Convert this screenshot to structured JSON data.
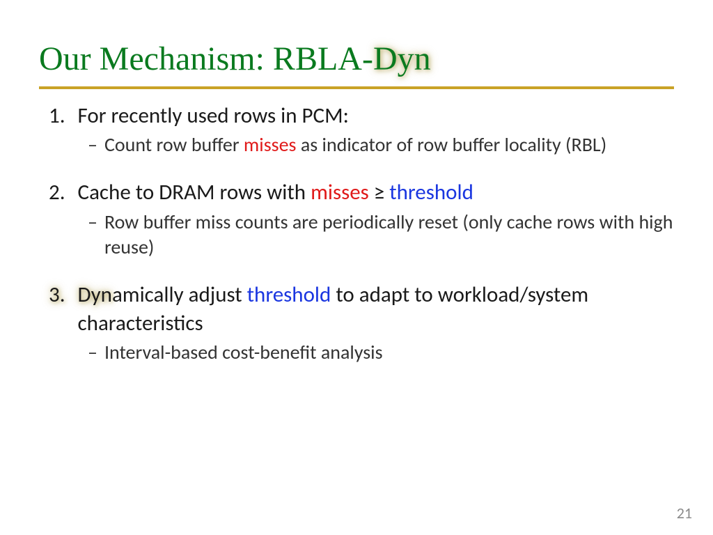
{
  "colors": {
    "title_green": "#0a7a1f",
    "rule": "#c9a227",
    "misses_red": "#e01a1a",
    "threshold_blue": "#1a36e0",
    "page_num_gray": "#8a8a8a",
    "body_text": "#1a1a1a",
    "sub_text": "#333333"
  },
  "typography": {
    "title_font": "Times New Roman",
    "body_font": "Calibri",
    "title_size_pt": 40,
    "body_size_pt": 28,
    "sub_size_pt": 24,
    "pagenum_size_pt": 18
  },
  "title": {
    "prefix": "Our Mechanism: RBLA-",
    "glow_suffix": "Dyn"
  },
  "items": [
    {
      "num": "1.",
      "text": "For recently used rows in PCM:",
      "sub": {
        "dash": "–",
        "pre": "Count row buffer ",
        "misses": "misses",
        "post": " as indicator of row buffer locality (RBL)"
      }
    },
    {
      "num": "2.",
      "text_pre": "Cache to DRAM rows with ",
      "misses": "misses",
      "geq": " ≥ ",
      "threshold": "threshold",
      "sub": {
        "dash": "–",
        "text": "Row buffer miss counts are periodically reset (only cache rows with high reuse)"
      }
    },
    {
      "num": "3.",
      "glow_prefix": "Dyn",
      "text_mid": "amically adjust ",
      "threshold": "threshold",
      "text_post": " to adapt to workload/system characteristics",
      "sub": {
        "dash": "–",
        "text": "Interval-based cost-benefit analysis"
      }
    }
  ],
  "page_number": "21"
}
